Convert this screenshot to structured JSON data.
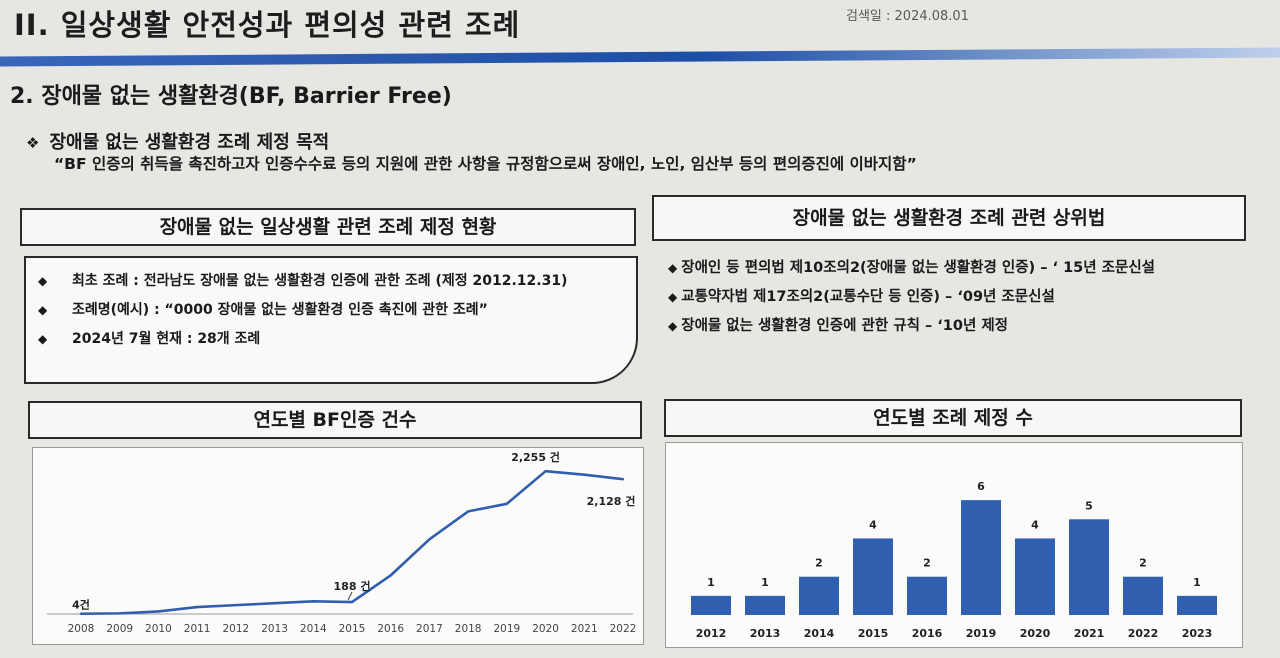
{
  "header": {
    "title": "II. 일상생활 안전성과 편의성 관련 조례",
    "search_date": "검색일 : 2024.08.01"
  },
  "section": {
    "heading": "2. 장애물 없는 생활환경(BF, Barrier Free)",
    "subheading": "장애물 없는 생활환경 조례 제정 목적",
    "subheading_mark": "❖",
    "purpose": "“BF 인증의 취득을 촉진하고자 인증수수료 등의 지원에 관한 사항을 규정함으로써 장애인, 노인, 임산부 등의 편의증진에 이바지함”"
  },
  "ordinance_status": {
    "title": "장애물 없는 일상생활 관련 조례 제정 현황",
    "items": [
      "최초 조례 : 전라남도 장애물 없는 생활환경 인증에 관한 조례 (제정 2012.12.31)",
      "조례명(예시) :  “0000 장애물 없는 생활환경 인증 촉진에 관한 조례”",
      "2024년 7월 현재 : 28개 조례"
    ]
  },
  "higher_laws": {
    "title": "장애물 없는 생활환경 조례 관련 상위법",
    "items": [
      "장애인 등 편의법 제10조의2(장애물 없는 생활환경 인증) –  ‘ 15년 조문신설",
      "교통약자법 제17조의2(교통수단 등 인증) –   ‘09년 조문신설",
      "장애물 없는 생활환경 인증에 관한 규칙 –   ‘10년 제정"
    ]
  },
  "bullet_icon": "diamond-icon",
  "colors": {
    "bar": "#2f5fae",
    "line": "#2f5fae",
    "rule": "#1d4ea5"
  },
  "chart_data": [
    {
      "type": "line",
      "title": "연도별 BF인증 건수",
      "x": [
        "2008",
        "2009",
        "2010",
        "2011",
        "2012",
        "2013",
        "2014",
        "2015",
        "2016",
        "2017",
        "2018",
        "2019",
        "2020",
        "2021",
        "2022"
      ],
      "values": [
        4,
        10,
        40,
        110,
        140,
        170,
        200,
        188,
        610,
        1180,
        1620,
        1740,
        2255,
        2200,
        2128
      ],
      "ylim": [
        0,
        2400
      ],
      "annotations": [
        {
          "index": 0,
          "label": "4건"
        },
        {
          "index": 7,
          "label": "188 건"
        },
        {
          "index": 12,
          "label": "2,255 건"
        },
        {
          "index": 14,
          "label": "2,128 건"
        }
      ]
    },
    {
      "type": "bar",
      "title": "연도별 조례 제정 수",
      "categories": [
        "2012",
        "2013",
        "2014",
        "2015",
        "2016",
        "2019",
        "2020",
        "2021",
        "2022",
        "2023"
      ],
      "values": [
        1,
        1,
        2,
        4,
        2,
        6,
        4,
        5,
        2,
        1
      ],
      "ylim": [
        0,
        7
      ]
    }
  ]
}
